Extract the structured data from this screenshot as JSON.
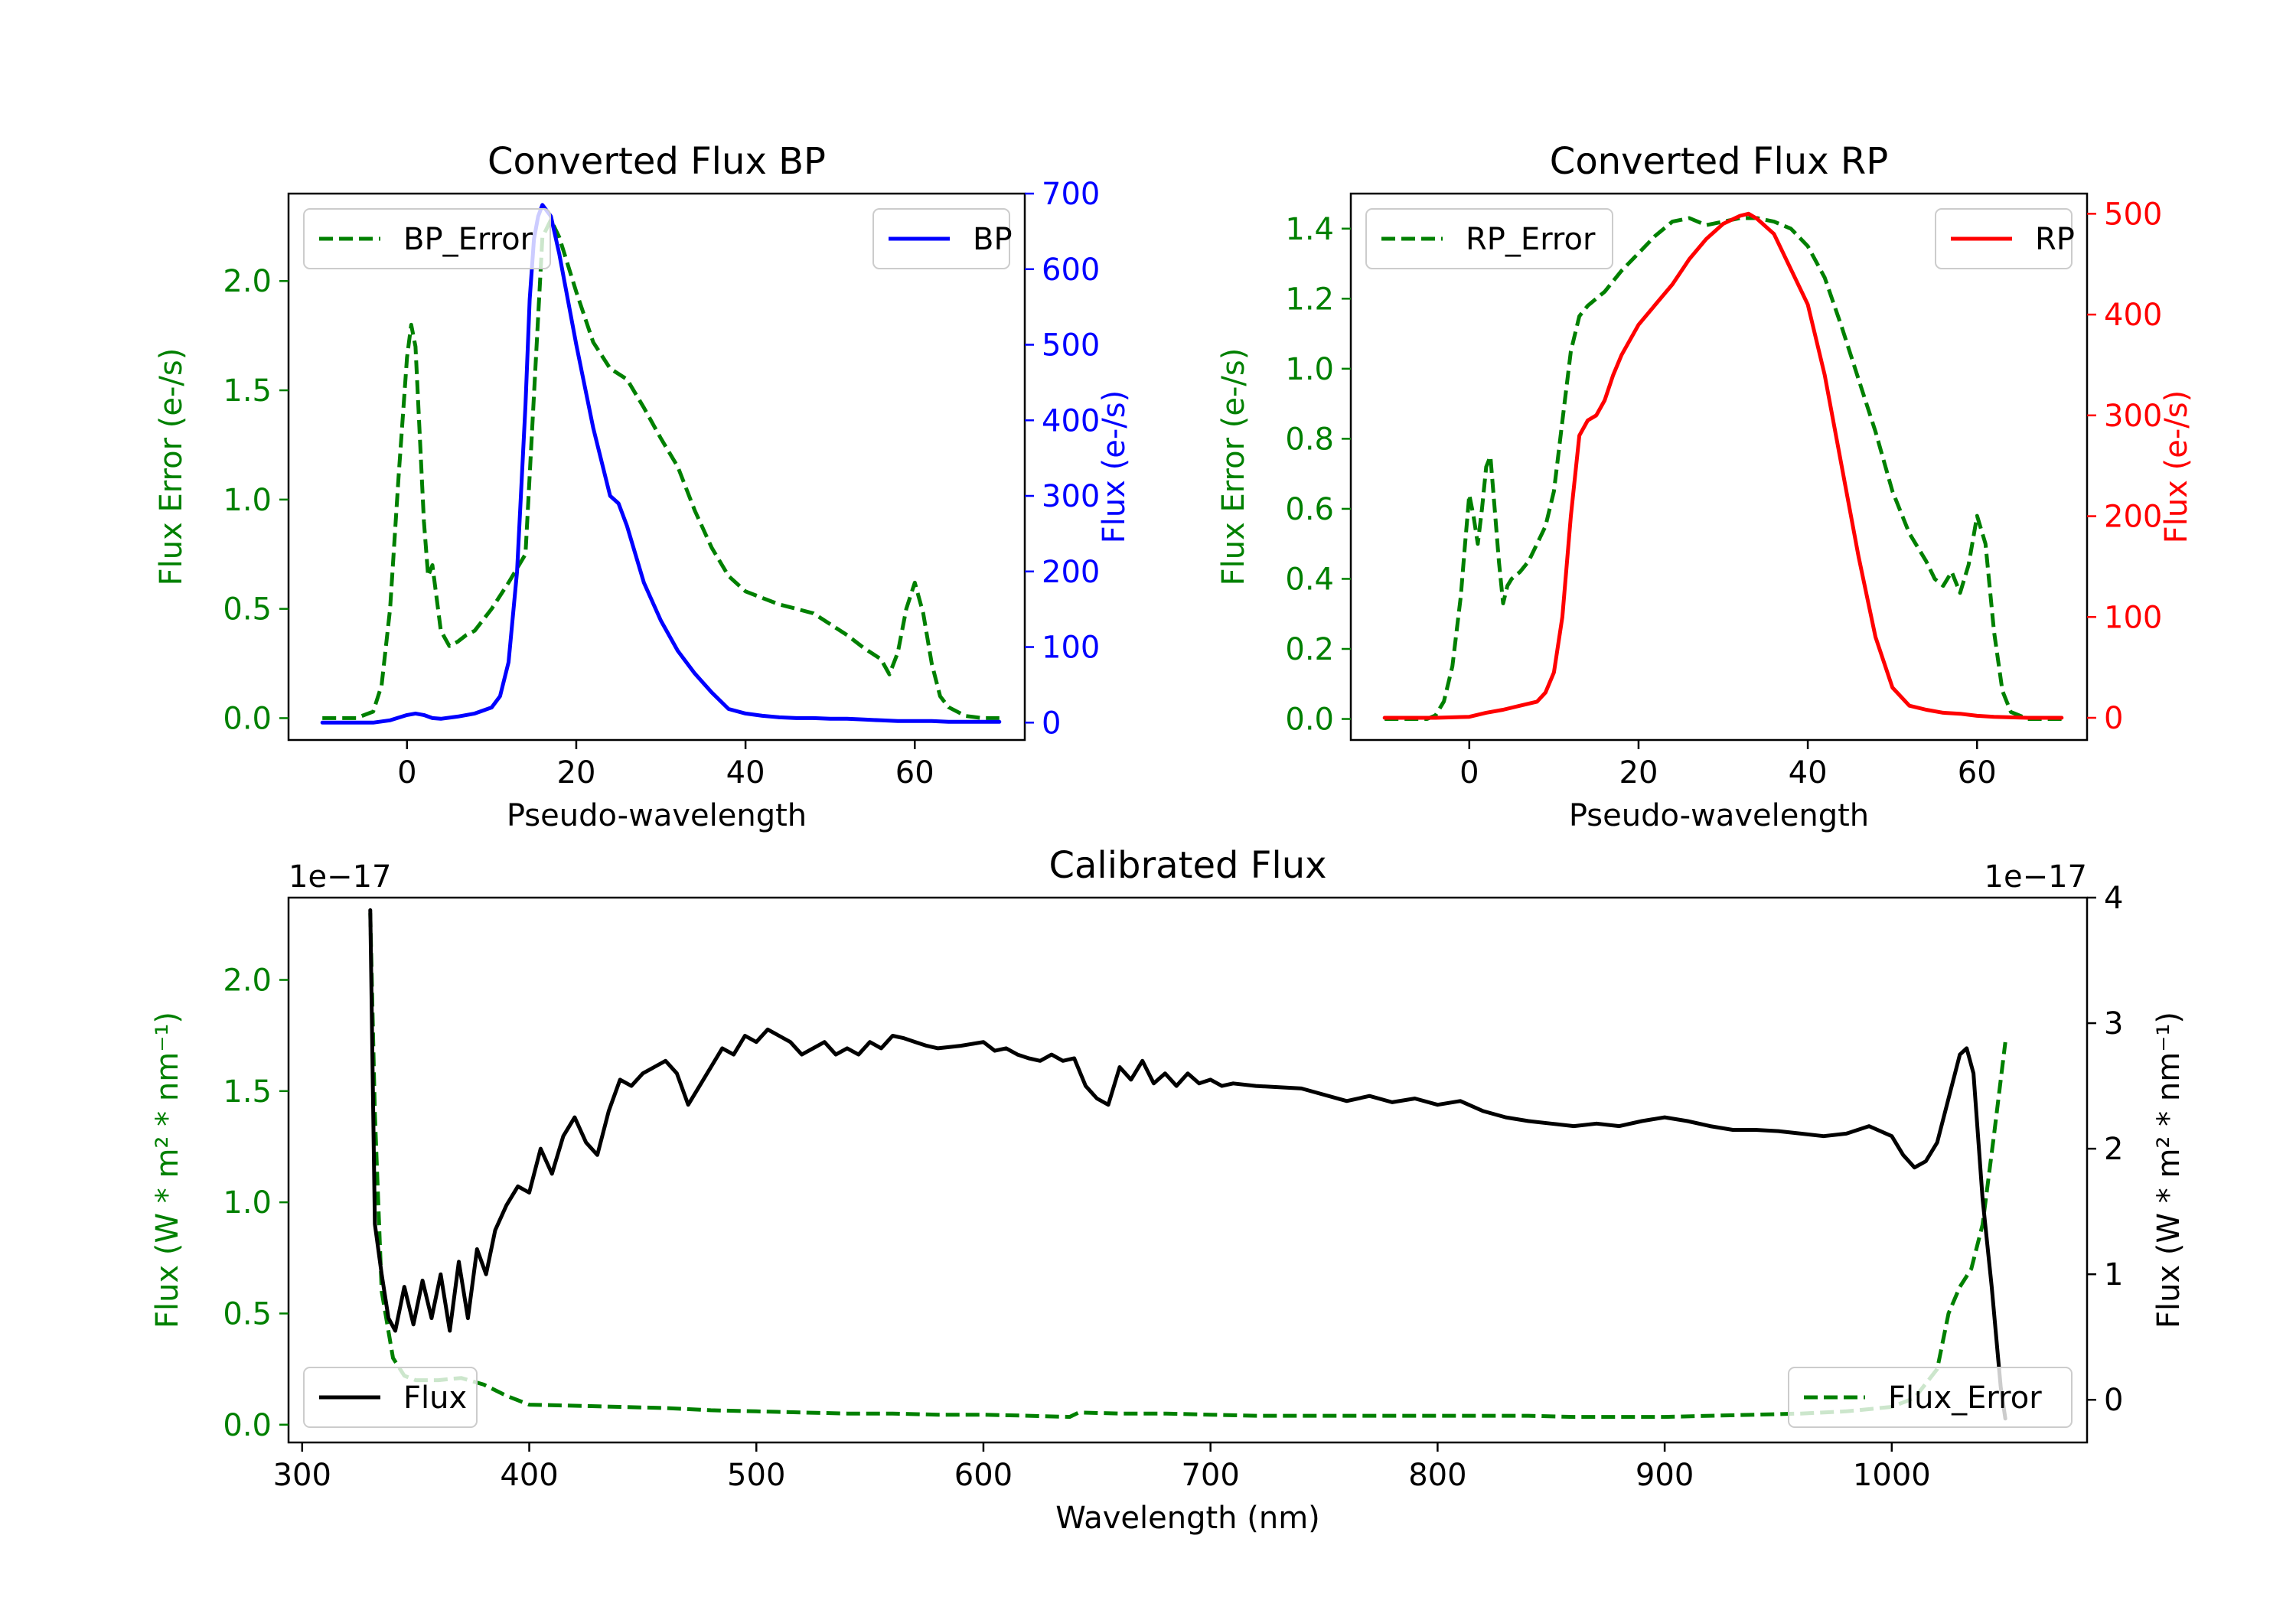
{
  "colors": {
    "green": "#008000",
    "blue": "#0000ff",
    "red": "#ff0000",
    "black": "#000000",
    "axis": "#000000",
    "legend_border": "#cccccc"
  },
  "chart_data": [
    {
      "id": "bp",
      "type": "line",
      "title": "Converted Flux BP",
      "xlabel": "Pseudo-wavelength",
      "ylabel_left": "Flux Error (e-/s)",
      "ylabel_right": "Flux (e-/s)",
      "xlim": [
        -14,
        73
      ],
      "ylim_left": [
        -0.1,
        2.4
      ],
      "ylim_right": [
        -23,
        700
      ],
      "xticks": [
        0,
        20,
        40,
        60
      ],
      "xtick_labels": [
        "0",
        "20",
        "40",
        "60"
      ],
      "yticks_left": [
        0,
        0.5,
        1.0,
        1.5,
        2.0
      ],
      "ytick_labels_left": [
        "0.0",
        "0.5",
        "1.0",
        "1.5",
        "2.0"
      ],
      "yticks_right": [
        0,
        100,
        200,
        300,
        400,
        500,
        600,
        700
      ],
      "ytick_labels_right": [
        "0",
        "100",
        "200",
        "300",
        "400",
        "500",
        "600",
        "700"
      ],
      "legend_left": "BP_Error",
      "legend_right": "BP",
      "series": [
        {
          "name": "BP_Error",
          "axis": "left",
          "color": "green",
          "dash": true,
          "x": [
            -10,
            -6,
            -4,
            -3,
            -2,
            -1,
            0,
            0.5,
            1,
            1.5,
            2,
            2.5,
            3,
            3.5,
            4,
            5,
            6,
            7,
            8,
            10,
            12,
            14,
            16,
            17,
            18,
            20,
            22,
            24,
            26,
            28,
            30,
            32,
            34,
            36,
            38,
            40,
            42,
            44,
            46,
            48,
            50,
            52,
            54,
            56,
            57,
            58,
            59,
            60,
            61,
            62,
            63,
            64,
            66,
            68,
            70
          ],
          "y": [
            0,
            0,
            0.03,
            0.15,
            0.5,
            1.1,
            1.65,
            1.8,
            1.7,
            1.3,
            0.9,
            0.65,
            0.7,
            0.55,
            0.4,
            0.33,
            0.35,
            0.38,
            0.4,
            0.5,
            0.62,
            0.75,
            2.2,
            2.28,
            2.2,
            1.95,
            1.72,
            1.6,
            1.55,
            1.42,
            1.28,
            1.15,
            0.95,
            0.78,
            0.65,
            0.58,
            0.55,
            0.52,
            0.5,
            0.48,
            0.43,
            0.38,
            0.32,
            0.27,
            0.2,
            0.3,
            0.5,
            0.62,
            0.48,
            0.25,
            0.1,
            0.05,
            0.01,
            0,
            0
          ]
        },
        {
          "name": "BP",
          "axis": "right",
          "color": "blue",
          "dash": false,
          "x": [
            -10,
            -6,
            -4,
            -2,
            0,
            1,
            2,
            3,
            4,
            6,
            8,
            10,
            11,
            12,
            13,
            14,
            14.5,
            15,
            15.5,
            16,
            17,
            18,
            19,
            20,
            22,
            24,
            25,
            26,
            28,
            30,
            32,
            34,
            36,
            38,
            40,
            42,
            44,
            46,
            48,
            50,
            52,
            54,
            56,
            58,
            60,
            62,
            64,
            66,
            68,
            70
          ],
          "y": [
            0,
            0,
            0,
            3,
            10,
            12,
            10,
            6,
            5,
            8,
            12,
            20,
            35,
            80,
            200,
            420,
            560,
            640,
            670,
            685,
            670,
            620,
            560,
            500,
            390,
            300,
            290,
            260,
            185,
            135,
            95,
            65,
            40,
            18,
            12,
            9,
            7,
            6,
            6,
            5,
            5,
            4,
            3,
            2,
            2,
            2,
            1,
            1,
            1,
            1
          ]
        }
      ]
    },
    {
      "id": "rp",
      "type": "line",
      "title": "Converted Flux RP",
      "xlabel": "Pseudo-wavelength",
      "ylabel_left": "Flux Error (e-/s)",
      "ylabel_right": "Flux (e-/s)",
      "xlim": [
        -14,
        73
      ],
      "ylim_left": [
        -0.06,
        1.5
      ],
      "ylim_right": [
        -22,
        520
      ],
      "xticks": [
        0,
        20,
        40,
        60
      ],
      "xtick_labels": [
        "0",
        "20",
        "40",
        "60"
      ],
      "yticks_left": [
        0,
        0.2,
        0.4,
        0.6,
        0.8,
        1.0,
        1.2,
        1.4
      ],
      "ytick_labels_left": [
        "0.0",
        "0.2",
        "0.4",
        "0.6",
        "0.8",
        "1.0",
        "1.2",
        "1.4"
      ],
      "yticks_right": [
        0,
        100,
        200,
        300,
        400,
        500
      ],
      "ytick_labels_right": [
        "0",
        "100",
        "200",
        "300",
        "400",
        "500"
      ],
      "legend_left": "RP_Error",
      "legend_right": "RP",
      "series": [
        {
          "name": "RP_Error",
          "axis": "left",
          "color": "green",
          "dash": true,
          "x": [
            -10,
            -5,
            -4,
            -3,
            -2,
            -1,
            -0.5,
            0,
            0.5,
            1,
            1.5,
            2,
            2.5,
            3,
            3.5,
            4,
            4.5,
            5,
            6,
            7,
            8,
            9,
            10,
            11,
            12,
            13,
            14,
            16,
            18,
            20,
            22,
            24,
            26,
            28,
            30,
            32,
            34,
            36,
            38,
            40,
            42,
            44,
            46,
            48,
            50,
            52,
            54,
            55,
            56,
            57,
            58,
            59,
            60,
            61,
            62,
            63,
            64,
            66,
            70
          ],
          "y": [
            0,
            0,
            0.01,
            0.05,
            0.15,
            0.35,
            0.5,
            0.64,
            0.58,
            0.5,
            0.6,
            0.72,
            0.75,
            0.6,
            0.45,
            0.33,
            0.38,
            0.4,
            0.42,
            0.45,
            0.5,
            0.55,
            0.65,
            0.85,
            1.05,
            1.15,
            1.18,
            1.22,
            1.28,
            1.33,
            1.38,
            1.42,
            1.43,
            1.41,
            1.42,
            1.43,
            1.43,
            1.42,
            1.4,
            1.35,
            1.26,
            1.12,
            0.97,
            0.82,
            0.65,
            0.53,
            0.45,
            0.4,
            0.38,
            0.42,
            0.36,
            0.44,
            0.58,
            0.5,
            0.25,
            0.08,
            0.02,
            0,
            0
          ]
        },
        {
          "name": "RP",
          "axis": "right",
          "color": "red",
          "dash": false,
          "x": [
            -10,
            -4,
            0,
            2,
            4,
            6,
            8,
            9,
            10,
            11,
            12,
            13,
            14,
            15,
            16,
            17,
            18,
            20,
            22,
            24,
            26,
            28,
            30,
            32,
            33,
            34,
            36,
            38,
            40,
            42,
            44,
            46,
            48,
            50,
            52,
            54,
            56,
            58,
            60,
            62,
            66,
            70
          ],
          "y": [
            0,
            0,
            1,
            5,
            8,
            12,
            16,
            25,
            45,
            100,
            200,
            280,
            295,
            300,
            315,
            340,
            360,
            390,
            410,
            430,
            455,
            475,
            490,
            498,
            500,
            495,
            480,
            445,
            410,
            340,
            250,
            160,
            80,
            30,
            12,
            8,
            5,
            4,
            2,
            1,
            0,
            0
          ]
        }
      ]
    },
    {
      "id": "cal",
      "type": "line",
      "title": "Calibrated Flux",
      "xlabel": "Wavelength (nm)",
      "ylabel_left": "Flux (W * m² * nm⁻¹)",
      "ylabel_right": "Flux (W * m² * nm⁻¹)",
      "offset_left": "1e−17",
      "offset_right": "1e−17",
      "xlim": [
        294,
        1086
      ],
      "ylim_left": [
        -0.08,
        2.37
      ],
      "ylim_right": [
        -0.34,
        4.0
      ],
      "xticks": [
        300,
        400,
        500,
        600,
        700,
        800,
        900,
        1000
      ],
      "xtick_labels": [
        "300",
        "400",
        "500",
        "600",
        "700",
        "800",
        "900",
        "1000"
      ],
      "yticks_left": [
        0,
        0.5,
        1.0,
        1.5,
        2.0
      ],
      "ytick_labels_left": [
        "0.0",
        "0.5",
        "1.0",
        "1.5",
        "2.0"
      ],
      "yticks_right": [
        0,
        1,
        2,
        3,
        4
      ],
      "ytick_labels_right": [
        "0",
        "1",
        "2",
        "3",
        "4"
      ],
      "legend_left": "Flux",
      "legend_right": "Flux_Error",
      "series": [
        {
          "name": "Flux_Error",
          "axis": "left",
          "color": "green",
          "dash": true,
          "x": [
            330,
            332,
            335,
            340,
            345,
            350,
            360,
            370,
            380,
            390,
            400,
            420,
            440,
            460,
            480,
            500,
            520,
            540,
            560,
            580,
            600,
            620,
            638,
            642,
            660,
            680,
            700,
            720,
            740,
            760,
            780,
            800,
            820,
            840,
            860,
            880,
            900,
            920,
            940,
            960,
            980,
            1000,
            1010,
            1020,
            1025,
            1030,
            1035,
            1040,
            1045,
            1050
          ],
          "y": [
            2.3,
            1.4,
            0.6,
            0.3,
            0.22,
            0.2,
            0.2,
            0.21,
            0.18,
            0.13,
            0.09,
            0.085,
            0.08,
            0.075,
            0.065,
            0.06,
            0.055,
            0.05,
            0.05,
            0.045,
            0.045,
            0.04,
            0.035,
            0.055,
            0.05,
            0.05,
            0.045,
            0.04,
            0.04,
            0.04,
            0.04,
            0.04,
            0.04,
            0.04,
            0.035,
            0.035,
            0.035,
            0.04,
            0.045,
            0.05,
            0.06,
            0.08,
            0.12,
            0.25,
            0.5,
            0.62,
            0.7,
            0.9,
            1.3,
            1.72
          ]
        },
        {
          "name": "Flux",
          "axis": "right",
          "color": "black",
          "dash": false,
          "x": [
            330,
            332,
            335,
            338,
            341,
            345,
            349,
            353,
            357,
            361,
            365,
            369,
            373,
            377,
            381,
            385,
            390,
            395,
            400,
            405,
            410,
            415,
            420,
            425,
            430,
            435,
            440,
            445,
            450,
            455,
            460,
            465,
            470,
            475,
            480,
            485,
            490,
            495,
            500,
            505,
            510,
            515,
            520,
            525,
            530,
            535,
            540,
            545,
            550,
            555,
            560,
            565,
            570,
            575,
            580,
            590,
            600,
            605,
            610,
            615,
            620,
            625,
            630,
            635,
            640,
            645,
            650,
            655,
            660,
            665,
            670,
            675,
            680,
            685,
            690,
            695,
            700,
            705,
            710,
            720,
            740,
            760,
            770,
            780,
            790,
            800,
            810,
            820,
            830,
            840,
            850,
            860,
            870,
            880,
            890,
            900,
            910,
            920,
            930,
            940,
            950,
            960,
            970,
            980,
            990,
            1000,
            1005,
            1010,
            1015,
            1020,
            1025,
            1030,
            1033,
            1036,
            1040,
            1044,
            1048,
            1050
          ],
          "y": [
            3.9,
            1.4,
            1.0,
            0.65,
            0.55,
            0.9,
            0.6,
            0.95,
            0.65,
            1.0,
            0.55,
            1.1,
            0.65,
            1.2,
            1.0,
            1.35,
            1.55,
            1.7,
            1.65,
            2.0,
            1.8,
            2.1,
            2.25,
            2.05,
            1.95,
            2.3,
            2.55,
            2.5,
            2.6,
            2.65,
            2.7,
            2.6,
            2.35,
            2.5,
            2.65,
            2.8,
            2.75,
            2.9,
            2.85,
            2.95,
            2.9,
            2.85,
            2.75,
            2.8,
            2.85,
            2.75,
            2.8,
            2.75,
            2.85,
            2.8,
            2.9,
            2.88,
            2.85,
            2.82,
            2.8,
            2.82,
            2.85,
            2.78,
            2.8,
            2.75,
            2.72,
            2.7,
            2.75,
            2.7,
            2.72,
            2.5,
            2.4,
            2.35,
            2.65,
            2.55,
            2.7,
            2.52,
            2.6,
            2.5,
            2.6,
            2.52,
            2.55,
            2.5,
            2.52,
            2.5,
            2.48,
            2.38,
            2.42,
            2.37,
            2.4,
            2.35,
            2.38,
            2.3,
            2.25,
            2.22,
            2.2,
            2.18,
            2.2,
            2.18,
            2.22,
            2.25,
            2.22,
            2.18,
            2.15,
            2.15,
            2.14,
            2.12,
            2.1,
            2.12,
            2.18,
            2.1,
            1.95,
            1.85,
            1.9,
            2.05,
            2.4,
            2.75,
            2.8,
            2.6,
            1.6,
            0.9,
            0.1,
            -0.15
          ]
        }
      ]
    }
  ]
}
